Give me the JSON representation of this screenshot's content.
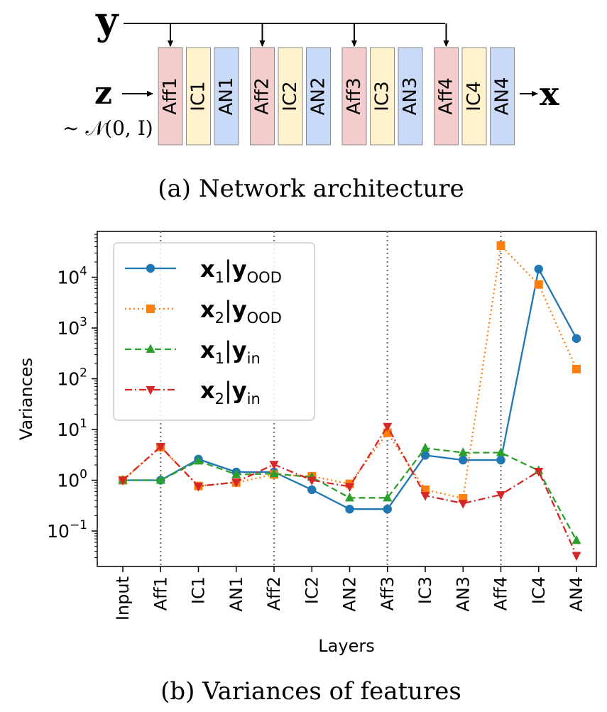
{
  "architecture": {
    "caption": "(a) Network architecture",
    "input_label": "z",
    "input_dist": "~ 𝒩(0, I)",
    "condition_label": "y",
    "output_label": "x",
    "blocks": [
      {
        "label": "Aff1",
        "kind": "aff"
      },
      {
        "label": "IC1",
        "kind": "ic"
      },
      {
        "label": "AN1",
        "kind": "an"
      },
      {
        "label": "Aff2",
        "kind": "aff"
      },
      {
        "label": "IC2",
        "kind": "ic"
      },
      {
        "label": "AN2",
        "kind": "an"
      },
      {
        "label": "Aff3",
        "kind": "aff"
      },
      {
        "label": "IC3",
        "kind": "ic"
      },
      {
        "label": "AN3",
        "kind": "an"
      },
      {
        "label": "Aff4",
        "kind": "aff"
      },
      {
        "label": "IC4",
        "kind": "ic"
      },
      {
        "label": "AN4",
        "kind": "an"
      }
    ],
    "colors": {
      "aff": "#f4cccc",
      "ic": "#fff2cc",
      "an": "#c9daf8"
    }
  },
  "chart_caption": "(b) Variances of features",
  "chart_data": {
    "type": "line",
    "xlabel": "Layers",
    "ylabel": "Variances",
    "yscale": "log",
    "ylim": [
      0.02,
      80000
    ],
    "categories": [
      "Input",
      "Aff1",
      "IC1",
      "AN1",
      "Aff2",
      "IC2",
      "AN2",
      "Aff3",
      "IC3",
      "AN3",
      "Aff4",
      "IC4",
      "AN4"
    ],
    "yticks": [
      {
        "value": 0.1,
        "base": "10",
        "exp": "−1"
      },
      {
        "value": 1,
        "base": "10",
        "exp": "0"
      },
      {
        "value": 10,
        "base": "10",
        "exp": "1"
      },
      {
        "value": 100,
        "base": "10",
        "exp": "2"
      },
      {
        "value": 1000,
        "base": "10",
        "exp": "3"
      },
      {
        "value": 10000,
        "base": "10",
        "exp": "4"
      }
    ],
    "vlines_at": [
      "Aff1",
      "Aff2",
      "Aff3",
      "Aff4"
    ],
    "legend_position": "top-left",
    "series": [
      {
        "name": "x1|yOOD",
        "sym": "x",
        "sub1": "1",
        "cond": "y",
        "sub2": "OOD",
        "color": "#1f77b4",
        "dash": "",
        "marker": "circle",
        "values": [
          1.0,
          1.0,
          2.6,
          1.45,
          1.45,
          0.65,
          0.27,
          0.27,
          3.1,
          2.5,
          2.5,
          14500,
          620
        ]
      },
      {
        "name": "x2|yOOD",
        "sym": "x",
        "sub1": "2",
        "cond": "y",
        "sub2": "OOD",
        "color": "#ff7f0e",
        "dash": "2,4",
        "marker": "square",
        "values": [
          1.0,
          4.5,
          0.77,
          0.9,
          1.3,
          1.2,
          0.85,
          8.6,
          0.65,
          0.44,
          42000,
          7200,
          155
        ]
      },
      {
        "name": "x1|yin",
        "sym": "x",
        "sub1": "1",
        "cond": "y",
        "sub2": "in",
        "color": "#2ca02c",
        "dash": "9,5",
        "marker": "triangle-up",
        "values": [
          1.0,
          1.0,
          2.4,
          1.3,
          1.35,
          1.15,
          0.45,
          0.45,
          4.3,
          3.5,
          3.5,
          1.55,
          0.065
        ]
      },
      {
        "name": "x2|yin",
        "sym": "x",
        "sub1": "2",
        "cond": "y",
        "sub2": "in",
        "color": "#d62728",
        "dash": "10,4,2,4",
        "marker": "triangle-down",
        "values": [
          1.0,
          4.6,
          0.76,
          0.92,
          2.05,
          1.0,
          0.75,
          11.5,
          0.5,
          0.35,
          0.52,
          1.5,
          0.033
        ]
      }
    ]
  }
}
